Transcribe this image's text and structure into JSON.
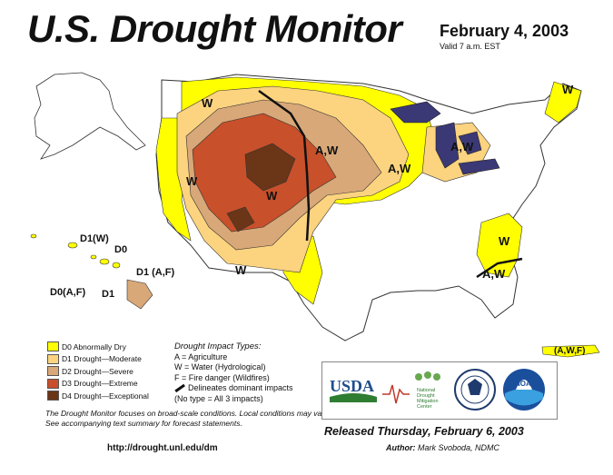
{
  "header": {
    "title": "U.S. Drought Monitor",
    "date": "February 4, 2003",
    "valid": "Valid 7 a.m. EST"
  },
  "map": {
    "region_labels": {
      "W_nw": "W",
      "W_west": "W",
      "W_central": "W",
      "W_sw": "W",
      "AW_plains": "A,W",
      "AW_midwest": "A,W",
      "AW_michigan": "A,W",
      "W_maine": "W",
      "W_carolina": "W",
      "AW_georgia": "A,W",
      "hi_d1w": "D1(W)",
      "hi_d0": "D0",
      "hi_d1af": "D1 (A,F)",
      "hi_d0af": "D0(A,F)",
      "hi_d1": "D1",
      "pr_awf": "(A,W,F)"
    }
  },
  "legend": {
    "items": [
      {
        "label": "D0 Abnormally Dry",
        "color": "#ffff00"
      },
      {
        "label": "D1 Drought—Moderate",
        "color": "#fcd37f"
      },
      {
        "label": "D2 Drought—Severe",
        "color": "#d8a878"
      },
      {
        "label": "D3 Drought—Extreme",
        "color": "#c8502a"
      },
      {
        "label": "D4 Drought—Exceptional",
        "color": "#6b3518"
      }
    ]
  },
  "impacts": {
    "heading": "Drought Impact Types:",
    "lines": [
      "A = Agriculture",
      "W = Water (Hydrological)",
      "F = Fire danger (Wildfires)"
    ],
    "delineates": "Delineates dominant impacts",
    "no_type": "(No type = All 3 impacts)"
  },
  "footer": {
    "broad_text": "The Drought Monitor focuses on broad-scale conditions. Local conditions may vary. See accompanying text summary for forecast statements.",
    "url": "http://drought.unl.edu/dm",
    "released": "Released Thursday, February 6, 2003",
    "author_label": "Author:",
    "author_name": "Mark Svoboda, NDMC"
  },
  "logos": {
    "usda": "USDA",
    "ndmc_lines": [
      "National",
      "Drought",
      "Mitigation",
      "Center"
    ],
    "noaa": "NOAA"
  }
}
